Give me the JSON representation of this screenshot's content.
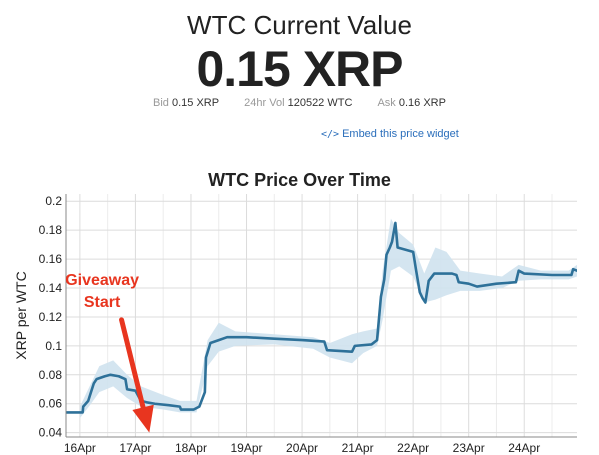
{
  "header": {
    "title": "WTC Current Value",
    "value": "0.15 XRP",
    "bid_label": "Bid",
    "bid_value": "0.15 XRP",
    "vol_label": "24hr Vol",
    "vol_value": "120522 WTC",
    "ask_label": "Ask",
    "ask_value": "0.16 XRP",
    "embed_label": "Embed this price widget",
    "embed_icon": "code-icon"
  },
  "chart_data": {
    "type": "line",
    "title": "WTC Price Over Time",
    "ylabel": "XRP per WTC",
    "xlabel": "",
    "xlim": [
      15.75,
      24.95
    ],
    "ylim": [
      0.037,
      0.205
    ],
    "x_ticks": [
      16,
      17,
      18,
      19,
      20,
      21,
      22,
      23,
      24
    ],
    "x_tick_labels": [
      "16Apr",
      "17Apr",
      "18Apr",
      "19Apr",
      "20Apr",
      "21Apr",
      "22Apr",
      "23Apr",
      "24Apr"
    ],
    "y_ticks": [
      0.04,
      0.06,
      0.08,
      0.1,
      0.12,
      0.14,
      0.16,
      0.18,
      0.2
    ],
    "y_tick_labels": [
      "0.04",
      "0.06",
      "0.08",
      "0.1",
      "0.12",
      "0.14",
      "0.16",
      "0.18",
      "0.2"
    ],
    "grid": true,
    "line_color": "#2e7199",
    "band_color": "#cfe2ee",
    "arrow_color": "#e8351f",
    "series": [
      {
        "values": [
          [
            15.75,
            0.054
          ],
          [
            16.05,
            0.054
          ],
          [
            16.06,
            0.058
          ],
          [
            16.15,
            0.062
          ],
          [
            16.2,
            0.068
          ],
          [
            16.25,
            0.074
          ],
          [
            16.3,
            0.077
          ],
          [
            16.45,
            0.079
          ],
          [
            16.55,
            0.08
          ],
          [
            16.7,
            0.079
          ],
          [
            16.82,
            0.077
          ],
          [
            16.85,
            0.07
          ],
          [
            17.0,
            0.069
          ],
          [
            17.1,
            0.062
          ],
          [
            17.2,
            0.061
          ],
          [
            17.35,
            0.06
          ],
          [
            17.6,
            0.059
          ],
          [
            17.8,
            0.058
          ],
          [
            17.82,
            0.056
          ],
          [
            18.05,
            0.056
          ],
          [
            18.15,
            0.058
          ],
          [
            18.25,
            0.068
          ],
          [
            18.27,
            0.092
          ],
          [
            18.35,
            0.102
          ],
          [
            18.5,
            0.104
          ],
          [
            18.65,
            0.106
          ],
          [
            19.0,
            0.106
          ],
          [
            19.5,
            0.105
          ],
          [
            20.0,
            0.104
          ],
          [
            20.4,
            0.103
          ],
          [
            20.45,
            0.097
          ],
          [
            20.9,
            0.096
          ],
          [
            20.95,
            0.1
          ],
          [
            21.25,
            0.101
          ],
          [
            21.35,
            0.104
          ],
          [
            21.42,
            0.134
          ],
          [
            21.48,
            0.146
          ],
          [
            21.52,
            0.163
          ],
          [
            21.58,
            0.168
          ],
          [
            21.62,
            0.172
          ],
          [
            21.68,
            0.185
          ],
          [
            21.72,
            0.168
          ],
          [
            22.0,
            0.165
          ],
          [
            22.05,
            0.153
          ],
          [
            22.12,
            0.137
          ],
          [
            22.17,
            0.133
          ],
          [
            22.22,
            0.13
          ],
          [
            22.28,
            0.145
          ],
          [
            22.38,
            0.15
          ],
          [
            22.7,
            0.15
          ],
          [
            22.78,
            0.149
          ],
          [
            22.82,
            0.144
          ],
          [
            23.0,
            0.143
          ],
          [
            23.15,
            0.141
          ],
          [
            23.5,
            0.143
          ],
          [
            23.85,
            0.144
          ],
          [
            23.9,
            0.152
          ],
          [
            24.0,
            0.15
          ],
          [
            24.5,
            0.149
          ],
          [
            24.85,
            0.149
          ],
          [
            24.88,
            0.153
          ],
          [
            24.95,
            0.152
          ]
        ]
      }
    ],
    "band": [
      [
        16.0,
        0.05,
        0.058
      ],
      [
        16.2,
        0.06,
        0.074
      ],
      [
        16.35,
        0.068,
        0.086
      ],
      [
        16.6,
        0.072,
        0.09
      ],
      [
        16.85,
        0.064,
        0.08
      ],
      [
        17.1,
        0.058,
        0.072
      ],
      [
        17.5,
        0.056,
        0.066
      ],
      [
        17.8,
        0.054,
        0.062
      ],
      [
        18.1,
        0.054,
        0.062
      ],
      [
        18.3,
        0.086,
        0.104
      ],
      [
        18.5,
        0.096,
        0.116
      ],
      [
        18.8,
        0.1,
        0.11
      ],
      [
        19.5,
        0.101,
        0.108
      ],
      [
        20.2,
        0.098,
        0.106
      ],
      [
        20.5,
        0.092,
        0.102
      ],
      [
        20.9,
        0.088,
        0.108
      ],
      [
        21.1,
        0.095,
        0.11
      ],
      [
        21.35,
        0.1,
        0.112
      ],
      [
        21.45,
        0.118,
        0.152
      ],
      [
        21.6,
        0.152,
        0.188
      ],
      [
        21.75,
        0.155,
        0.178
      ],
      [
        22.0,
        0.148,
        0.17
      ],
      [
        22.2,
        0.13,
        0.15
      ],
      [
        22.4,
        0.132,
        0.168
      ],
      [
        22.6,
        0.135,
        0.165
      ],
      [
        22.85,
        0.138,
        0.152
      ],
      [
        23.2,
        0.138,
        0.15
      ],
      [
        23.6,
        0.14,
        0.148
      ],
      [
        23.9,
        0.145,
        0.156
      ],
      [
        24.3,
        0.146,
        0.152
      ],
      [
        24.8,
        0.146,
        0.152
      ],
      [
        24.95,
        0.148,
        0.156
      ]
    ],
    "annotations": [
      {
        "text": "Giveaway",
        "x": 16.4,
        "y": 0.142
      },
      {
        "text": "Start",
        "x": 16.4,
        "y": 0.127
      }
    ],
    "arrow": {
      "from": [
        16.75,
        0.118
      ],
      "to": [
        17.25,
        0.04
      ]
    }
  }
}
